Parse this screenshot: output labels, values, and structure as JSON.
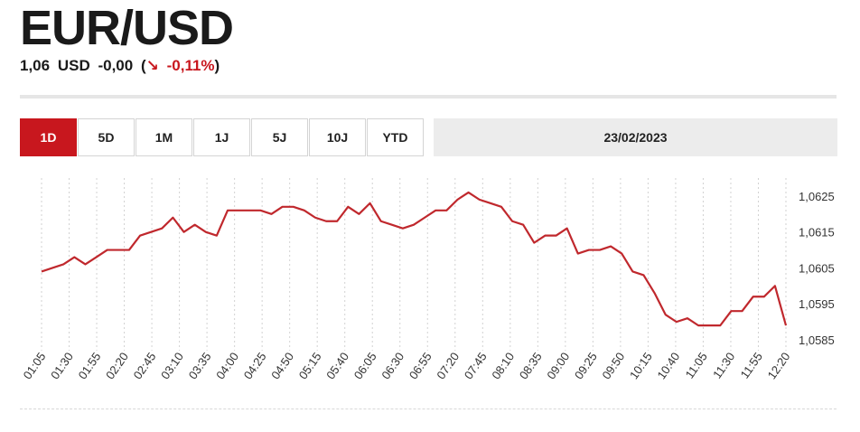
{
  "header": {
    "title": "EUR/USD",
    "price": "1,06",
    "currency": "USD",
    "change": "-0,00",
    "open_paren": "(",
    "arrow_icon": "↘",
    "change_pct": "-0,11%",
    "close_paren": ")"
  },
  "tabs": [
    {
      "label": "1D",
      "active": true
    },
    {
      "label": "5D",
      "active": false
    },
    {
      "label": "1M",
      "active": false
    },
    {
      "label": "1J",
      "active": false
    },
    {
      "label": "5J",
      "active": false
    },
    {
      "label": "10J",
      "active": false
    },
    {
      "label": "YTD",
      "active": false
    }
  ],
  "date": "23/02/2023",
  "colors": {
    "accent": "#c8171e",
    "line": "#c0282d"
  },
  "chart_data": {
    "type": "line",
    "x_tick_labels": [
      "01:05",
      "01:30",
      "01:55",
      "02:20",
      "02:45",
      "03:10",
      "03:35",
      "04:00",
      "04:25",
      "04:50",
      "05:15",
      "05:40",
      "06:05",
      "06:30",
      "06:55",
      "07:20",
      "07:45",
      "08:10",
      "08:35",
      "09:00",
      "09:25",
      "09:50",
      "10:15",
      "10:40",
      "11:05",
      "11:30",
      "11:55",
      "12:20"
    ],
    "y_tick_labels": [
      "1,0625",
      "1,0615",
      "1,0605",
      "1,0595",
      "1,0585"
    ],
    "y_ticks": [
      1.0625,
      1.0615,
      1.0605,
      1.0595,
      1.0585
    ],
    "ylim": [
      1.0584,
      1.063
    ],
    "grid": "vertical",
    "series": [
      {
        "values": [
          1.0604,
          1.0605,
          1.0606,
          1.0608,
          1.0606,
          1.0608,
          1.061,
          1.061,
          1.061,
          1.0614,
          1.0615,
          1.0616,
          1.0619,
          1.0615,
          1.0617,
          1.0615,
          1.0614,
          1.0621,
          1.0621,
          1.0621,
          1.0621,
          1.062,
          1.0622,
          1.0622,
          1.0621,
          1.0619,
          1.0618,
          1.0618,
          1.0622,
          1.062,
          1.0623,
          1.0618,
          1.0617,
          1.0616,
          1.0617,
          1.0619,
          1.0621,
          1.0621,
          1.0624,
          1.0626,
          1.0624,
          1.0623,
          1.0622,
          1.0618,
          1.0617,
          1.0612,
          1.0614,
          1.0614,
          1.0616,
          1.0609,
          1.061,
          1.061,
          1.0611,
          1.0609,
          1.0604,
          1.0603,
          1.0598,
          1.0592,
          1.059,
          1.0591,
          1.0589,
          1.0589,
          1.0589,
          1.0593,
          1.0593,
          1.0597,
          1.0597,
          1.06,
          1.0589
        ]
      }
    ]
  }
}
